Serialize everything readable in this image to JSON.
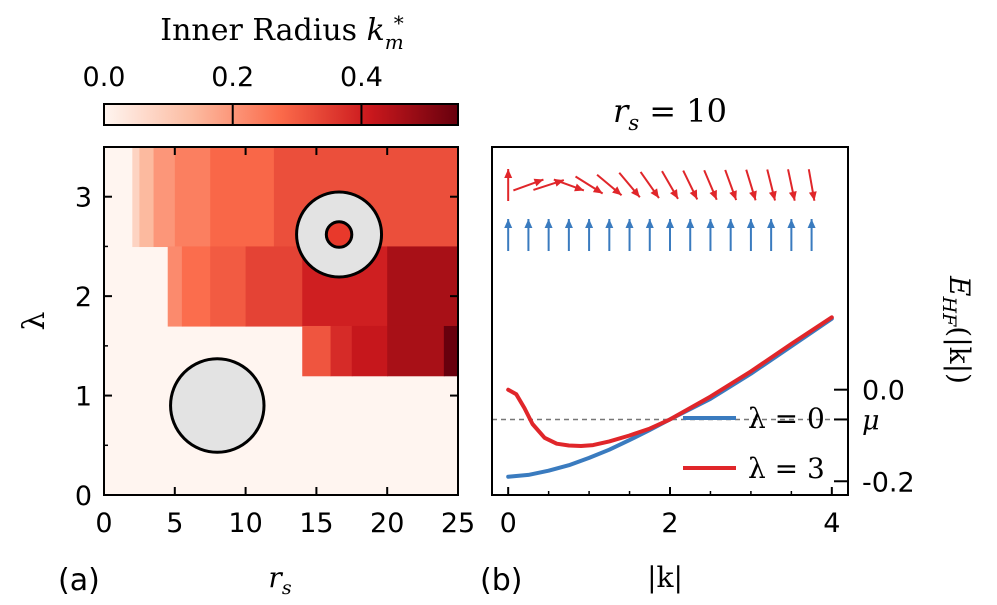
{
  "colorbar": {
    "title_text": "Inner Radius ",
    "title_math": "k",
    "title_sub": "m",
    "title_sup": "*",
    "tick_labels": [
      "0.0",
      "0.2",
      "0.4"
    ],
    "ticks": [
      0.0,
      0.2,
      0.4
    ],
    "inner_ticks": [
      0.2,
      0.4
    ],
    "range": [
      0.0,
      0.55
    ]
  },
  "panel_a": {
    "label": "(a)",
    "xlabel": "r",
    "xlabel_sub": "s",
    "ylabel": "λ",
    "x_tick_labels": [
      "0",
      "5",
      "10",
      "15",
      "20",
      "25"
    ],
    "y_tick_labels": [
      "0",
      "1",
      "2",
      "3"
    ]
  },
  "panel_b": {
    "label": "(b)",
    "title": "r",
    "title_sub": "s",
    "title_rest": " = 10",
    "xlabel": "|k|",
    "x_tick_labels": [
      "0",
      "2",
      "4"
    ],
    "ylabel": "E",
    "ylabel_sub": "HF",
    "ylabel_rest": "(|k|)",
    "y_tick_labels": [
      "0.0",
      "μ",
      "-0.2"
    ],
    "legend": [
      "λ = 0",
      "λ = 3"
    ]
  },
  "colors": {
    "series_lambda0": "#3a7bbf",
    "series_lambda3": "#e0262a",
    "spin_up": "#3a7bbf",
    "spin_tilt": "#e0262a",
    "fermi_line": "#777777",
    "disk_fill": "#e3e3e3"
  },
  "chart_data": [
    {
      "type": "heatmap",
      "title": "Inner Radius k*_m",
      "xlabel": "r_s",
      "ylabel": "λ",
      "xlim": [
        0,
        25
      ],
      "ylim": [
        0,
        3.5
      ],
      "x_ticks": [
        0,
        5,
        10,
        15,
        20,
        25
      ],
      "y_ticks": [
        0,
        1,
        2,
        3
      ],
      "colorbar_range": [
        0.0,
        0.55
      ],
      "background_value": 0.0,
      "cells": [
        {
          "x0": 2.0,
          "x1": 2.5,
          "y0": 2.5,
          "y1": 3.5,
          "v": 0.08
        },
        {
          "x0": 2.5,
          "x1": 3.5,
          "y0": 2.5,
          "y1": 3.5,
          "v": 0.14
        },
        {
          "x0": 3.5,
          "x1": 5.0,
          "y0": 2.5,
          "y1": 3.5,
          "v": 0.2
        },
        {
          "x0": 5.0,
          "x1": 7.5,
          "y0": 2.5,
          "y1": 3.5,
          "v": 0.24
        },
        {
          "x0": 7.5,
          "x1": 12.0,
          "y0": 2.5,
          "y1": 3.5,
          "v": 0.28
        },
        {
          "x0": 12.0,
          "x1": 25.0,
          "y0": 2.5,
          "y1": 3.5,
          "v": 0.32
        },
        {
          "x0": 4.5,
          "x1": 5.5,
          "y0": 1.7,
          "y1": 2.5,
          "v": 0.22
        },
        {
          "x0": 5.5,
          "x1": 7.5,
          "y0": 1.7,
          "y1": 2.5,
          "v": 0.27
        },
        {
          "x0": 7.5,
          "x1": 10.0,
          "y0": 1.7,
          "y1": 2.5,
          "v": 0.3
        },
        {
          "x0": 10.0,
          "x1": 14.0,
          "y0": 1.7,
          "y1": 2.5,
          "v": 0.34
        },
        {
          "x0": 14.0,
          "x1": 20.0,
          "y0": 1.7,
          "y1": 2.5,
          "v": 0.4
        },
        {
          "x0": 20.0,
          "x1": 25.0,
          "y0": 1.7,
          "y1": 2.5,
          "v": 0.46
        },
        {
          "x0": 14.0,
          "x1": 16.0,
          "y0": 1.2,
          "y1": 1.7,
          "v": 0.31
        },
        {
          "x0": 16.0,
          "x1": 17.5,
          "y0": 1.2,
          "y1": 1.7,
          "v": 0.38
        },
        {
          "x0": 17.5,
          "x1": 20.0,
          "y0": 1.2,
          "y1": 1.7,
          "v": 0.42
        },
        {
          "x0": 20.0,
          "x1": 24.0,
          "y0": 1.2,
          "y1": 1.7,
          "v": 0.46
        },
        {
          "x0": 24.0,
          "x1": 25.0,
          "y0": 1.2,
          "y1": 1.7,
          "v": 0.55
        }
      ],
      "annotations": [
        {
          "kind": "disk",
          "x": 8.0,
          "y": 0.9,
          "r_data": 3.3
        },
        {
          "kind": "annulus",
          "x": 16.6,
          "y": 2.62,
          "r_data": 3.0,
          "inner_r_data": 0.9
        }
      ]
    },
    {
      "type": "line",
      "title": "r_s = 10",
      "xlabel": "|k|",
      "ylabel": "E_HF(|k|)",
      "xlim": [
        -0.2,
        4.2
      ],
      "ylim": [
        -0.23,
        0.53
      ],
      "x_ticks": [
        0,
        2,
        4
      ],
      "y_ticks": [
        0.0,
        -0.2
      ],
      "fermi_level_mu": -0.065,
      "series": [
        {
          "name": "λ = 0",
          "x": [
            0.0,
            0.25,
            0.5,
            0.75,
            1.0,
            1.25,
            1.5,
            1.75,
            2.0,
            2.5,
            3.0,
            3.5,
            4.0
          ],
          "y": [
            -0.19,
            -0.186,
            -0.177,
            -0.165,
            -0.149,
            -0.131,
            -0.11,
            -0.088,
            -0.065,
            -0.02,
            0.035,
            0.095,
            0.155
          ]
        },
        {
          "name": "λ = 3",
          "x": [
            0.0,
            0.1,
            0.2,
            0.3,
            0.45,
            0.6,
            0.75,
            0.9,
            1.05,
            1.25,
            1.5,
            1.75,
            2.0,
            2.5,
            3.0,
            3.5,
            4.0
          ],
          "y": [
            0.0,
            -0.01,
            -0.04,
            -0.075,
            -0.105,
            -0.118,
            -0.122,
            -0.123,
            -0.121,
            -0.113,
            -0.1,
            -0.085,
            -0.065,
            -0.015,
            0.04,
            0.1,
            0.158
          ]
        }
      ],
      "spin_textures": [
        {
          "name": "λ = 0",
          "k": [
            0.0,
            0.25,
            0.5,
            0.75,
            1.0,
            1.25,
            1.5,
            1.75,
            2.0,
            2.25,
            2.5,
            2.75,
            3.0,
            3.25,
            3.5,
            3.75
          ],
          "angle_deg": [
            90,
            90,
            90,
            90,
            90,
            90,
            90,
            90,
            90,
            90,
            90,
            90,
            90,
            90,
            90,
            90
          ]
        },
        {
          "name": "λ = 3",
          "k": [
            0.0,
            0.25,
            0.5,
            0.75,
            1.0,
            1.25,
            1.5,
            1.75,
            2.0,
            2.25,
            2.5,
            2.75,
            3.0,
            3.25,
            3.5,
            3.75
          ],
          "angle_deg": [
            90,
            20,
            18,
            -20,
            -32,
            -40,
            -50,
            -55,
            -60,
            -64,
            -67,
            -70,
            -73,
            -76,
            -78,
            -80
          ]
        }
      ]
    }
  ]
}
